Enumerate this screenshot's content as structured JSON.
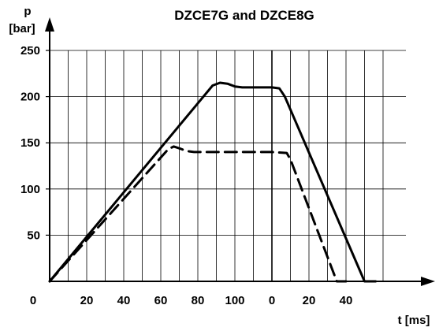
{
  "chart_data": {
    "type": "line",
    "title": "DZCE7G and DZCE8G",
    "ylabel_symbol": "p",
    "ylabel_unit": "[bar]",
    "xlabel": "t [ms]",
    "origin_label": "0",
    "ylim": [
      0,
      250
    ],
    "y_ticks": [
      50,
      100,
      150,
      200,
      250
    ],
    "x_segments": [
      {
        "range_ms": [
          0,
          120
        ],
        "tick_labels": [
          "20",
          "40",
          "60",
          "80",
          "100"
        ],
        "tick_values": [
          20,
          40,
          60,
          80,
          100
        ]
      },
      {
        "range_ms": [
          0,
          60
        ],
        "tick_labels": [
          "0",
          "20",
          "40"
        ],
        "tick_values": [
          0,
          20,
          40
        ]
      }
    ],
    "grid": true,
    "series": [
      {
        "style": "solid",
        "color": "#000000",
        "segments": [
          {
            "segment": 0,
            "points": [
              [
                0,
                0
              ],
              [
                88,
                212
              ],
              [
                92,
                215
              ],
              [
                96,
                214
              ],
              [
                100,
                211
              ],
              [
                104,
                210
              ],
              [
                120,
                210
              ]
            ]
          },
          {
            "segment": 1,
            "points": [
              [
                0,
                210
              ],
              [
                4,
                209
              ],
              [
                7,
                200
              ],
              [
                50,
                0
              ],
              [
                56,
                0
              ]
            ]
          }
        ]
      },
      {
        "style": "dashed",
        "color": "#000000",
        "segments": [
          {
            "segment": 0,
            "points": [
              [
                0,
                0
              ],
              [
                64,
                143
              ],
              [
                67,
                146
              ],
              [
                70,
                144
              ],
              [
                74,
                141
              ],
              [
                78,
                140
              ],
              [
                120,
                140
              ]
            ]
          },
          {
            "segment": 1,
            "points": [
              [
                0,
                140
              ],
              [
                8,
                139
              ],
              [
                10,
                132
              ],
              [
                35,
                0
              ],
              [
                40,
                0
              ]
            ]
          }
        ]
      }
    ]
  }
}
